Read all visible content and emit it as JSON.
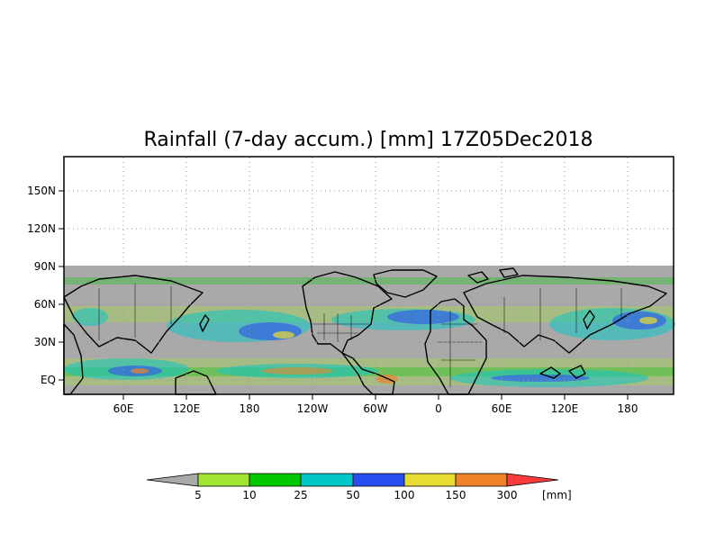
{
  "map": {
    "title": "Rainfall (7-day accum.) [mm] 17Z05Dec2018",
    "no_data_color": "#a9a9a9",
    "coastline_color": "#000000",
    "grid": true,
    "lat_labels": [
      "150N",
      "120N",
      "90N",
      "60N",
      "30N",
      "EQ"
    ],
    "lon_labels": [
      "60E",
      "120E",
      "180",
      "120W",
      "60W",
      "0",
      "60E",
      "120E",
      "180"
    ]
  },
  "colorbar": {
    "labels": [
      "5",
      "10",
      "25",
      "50",
      "100",
      "150",
      "300"
    ],
    "unit": "[mm]",
    "under_color": "#a9a9a9",
    "colors": [
      "#a0e632",
      "#00c800",
      "#00c8c8",
      "#2850f0",
      "#e6dc32",
      "#f08228"
    ],
    "over_color": "#fa3c3c"
  }
}
